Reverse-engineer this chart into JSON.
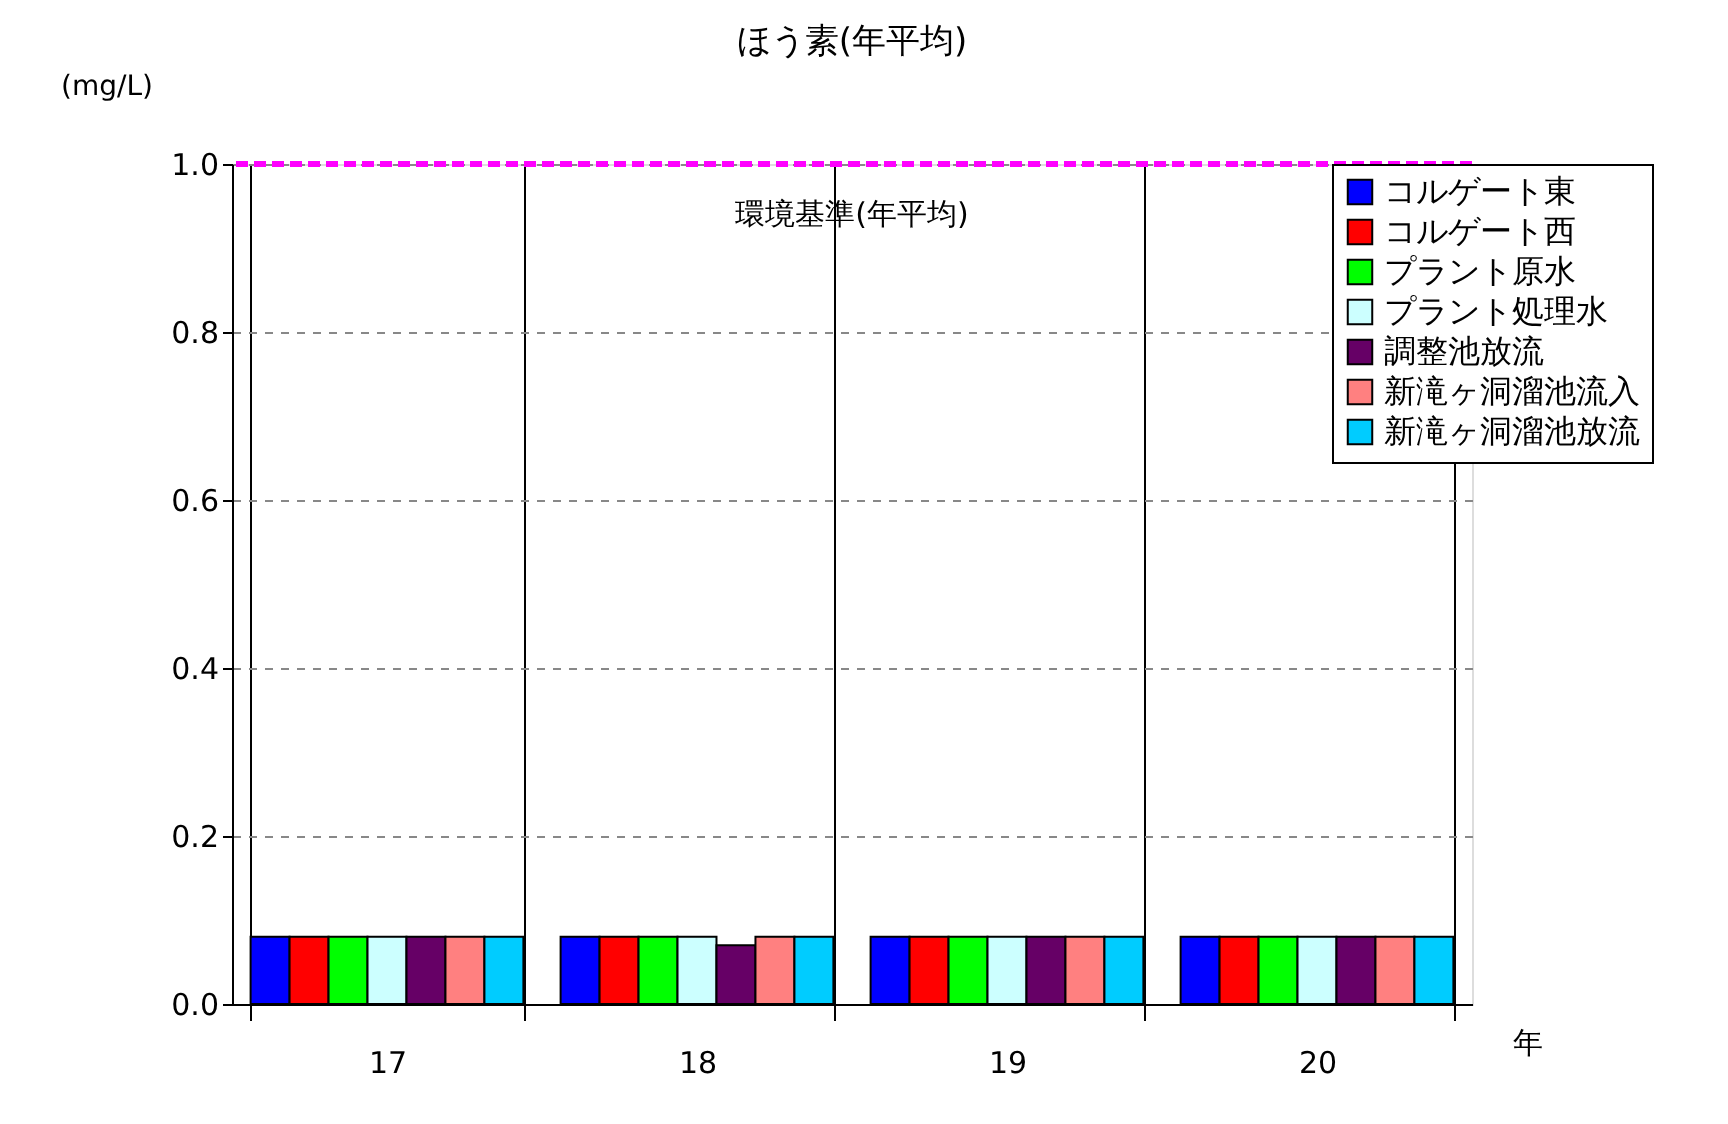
{
  "chart_data": {
    "type": "bar",
    "title": "ほう素(年平均)",
    "xlabel": "年",
    "ylabel": "(mg/L)",
    "categories": [
      "17",
      "18",
      "19",
      "20"
    ],
    "series": [
      {
        "name": "コルゲート東",
        "color": "#0000ff",
        "values": [
          0.08,
          0.08,
          0.08,
          0.08
        ]
      },
      {
        "name": "コルゲート西",
        "color": "#ff0000",
        "values": [
          0.08,
          0.08,
          0.08,
          0.08
        ]
      },
      {
        "name": "プラント原水",
        "color": "#00ff00",
        "values": [
          0.08,
          0.08,
          0.08,
          0.08
        ]
      },
      {
        "name": "プラント処理水",
        "color": "#ccffff",
        "values": [
          0.08,
          0.08,
          0.08,
          0.08
        ]
      },
      {
        "name": "調整池放流",
        "color": "#660066",
        "values": [
          0.08,
          0.07,
          0.08,
          0.08
        ]
      },
      {
        "name": "新滝ヶ洞溜池流入",
        "color": "#ff8080",
        "values": [
          0.08,
          0.08,
          0.08,
          0.08
        ]
      },
      {
        "name": "新滝ヶ洞溜池放流",
        "color": "#00ccff",
        "values": [
          0.08,
          0.08,
          0.08,
          0.08
        ]
      }
    ],
    "ylim": [
      0,
      1.0
    ],
    "yticks": [
      {
        "value": 0,
        "label": "0.0"
      },
      {
        "value": 0.2,
        "label": "0.2"
      },
      {
        "value": 0.4,
        "label": "0.4"
      },
      {
        "value": 0.6,
        "label": "0.6"
      },
      {
        "value": 0.8,
        "label": "0.8"
      },
      {
        "value": 1.0,
        "label": "1.0"
      }
    ],
    "ref_lines": [
      {
        "axis": "y",
        "value": 1.0,
        "label": "環境基準(年平均)",
        "color": "#ff00ff",
        "line_style": "dashed"
      }
    ],
    "grid": true,
    "legend": "top right"
  }
}
